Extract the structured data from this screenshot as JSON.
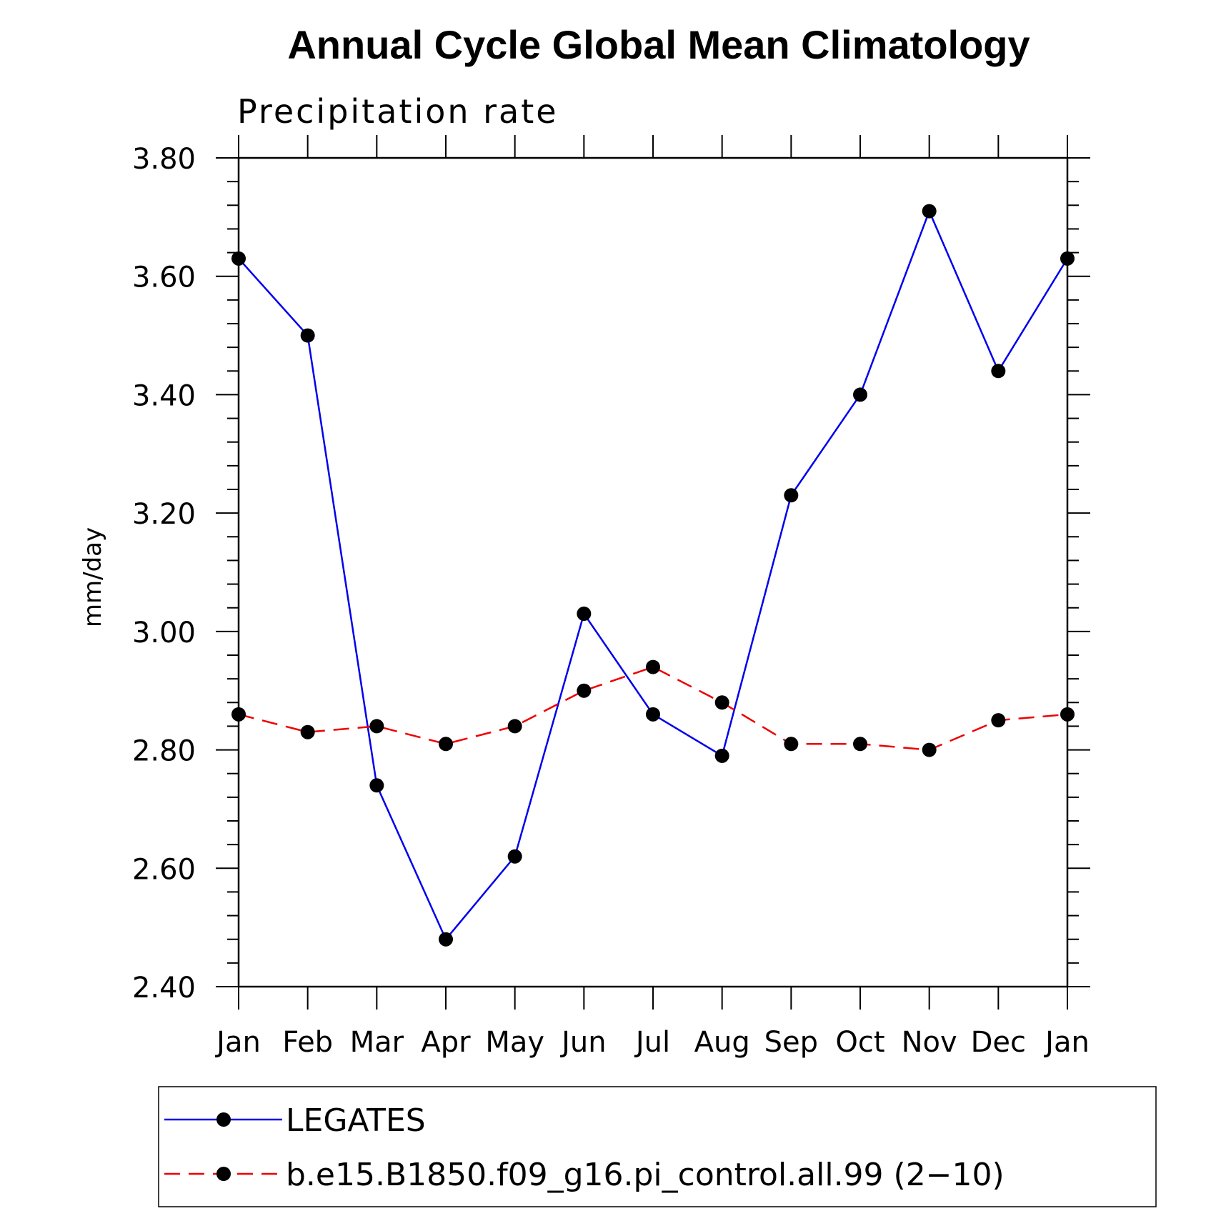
{
  "chart_data": {
    "type": "line",
    "title": "Annual Cycle Global Mean Climatology",
    "subtitle": "Precipitation rate",
    "xlabel": "",
    "ylabel": "mm/day",
    "categories": [
      "Jan",
      "Feb",
      "Mar",
      "Apr",
      "May",
      "Jun",
      "Jul",
      "Aug",
      "Sep",
      "Oct",
      "Nov",
      "Dec",
      "Jan"
    ],
    "ylim": [
      2.4,
      3.8
    ],
    "yticks": [
      "2.40",
      "2.60",
      "2.80",
      "3.00",
      "3.20",
      "3.40",
      "3.60",
      "3.80"
    ],
    "legend_position": "bottom",
    "series": [
      {
        "name": "LEGATES",
        "color": "#0000ee",
        "line_style": "solid",
        "marker": "filled-circle",
        "values": [
          3.63,
          3.5,
          2.74,
          2.48,
          2.62,
          3.03,
          2.86,
          2.79,
          3.23,
          3.4,
          3.71,
          3.44,
          3.63
        ]
      },
      {
        "name": "b.e15.B1850.f09_g16.pi_control.all.99 (2−10)",
        "color": "#ee0000",
        "line_style": "dashed",
        "marker": "filled-circle",
        "values": [
          2.86,
          2.83,
          2.84,
          2.81,
          2.84,
          2.9,
          2.94,
          2.88,
          2.81,
          2.81,
          2.8,
          2.85,
          2.86
        ]
      }
    ]
  }
}
